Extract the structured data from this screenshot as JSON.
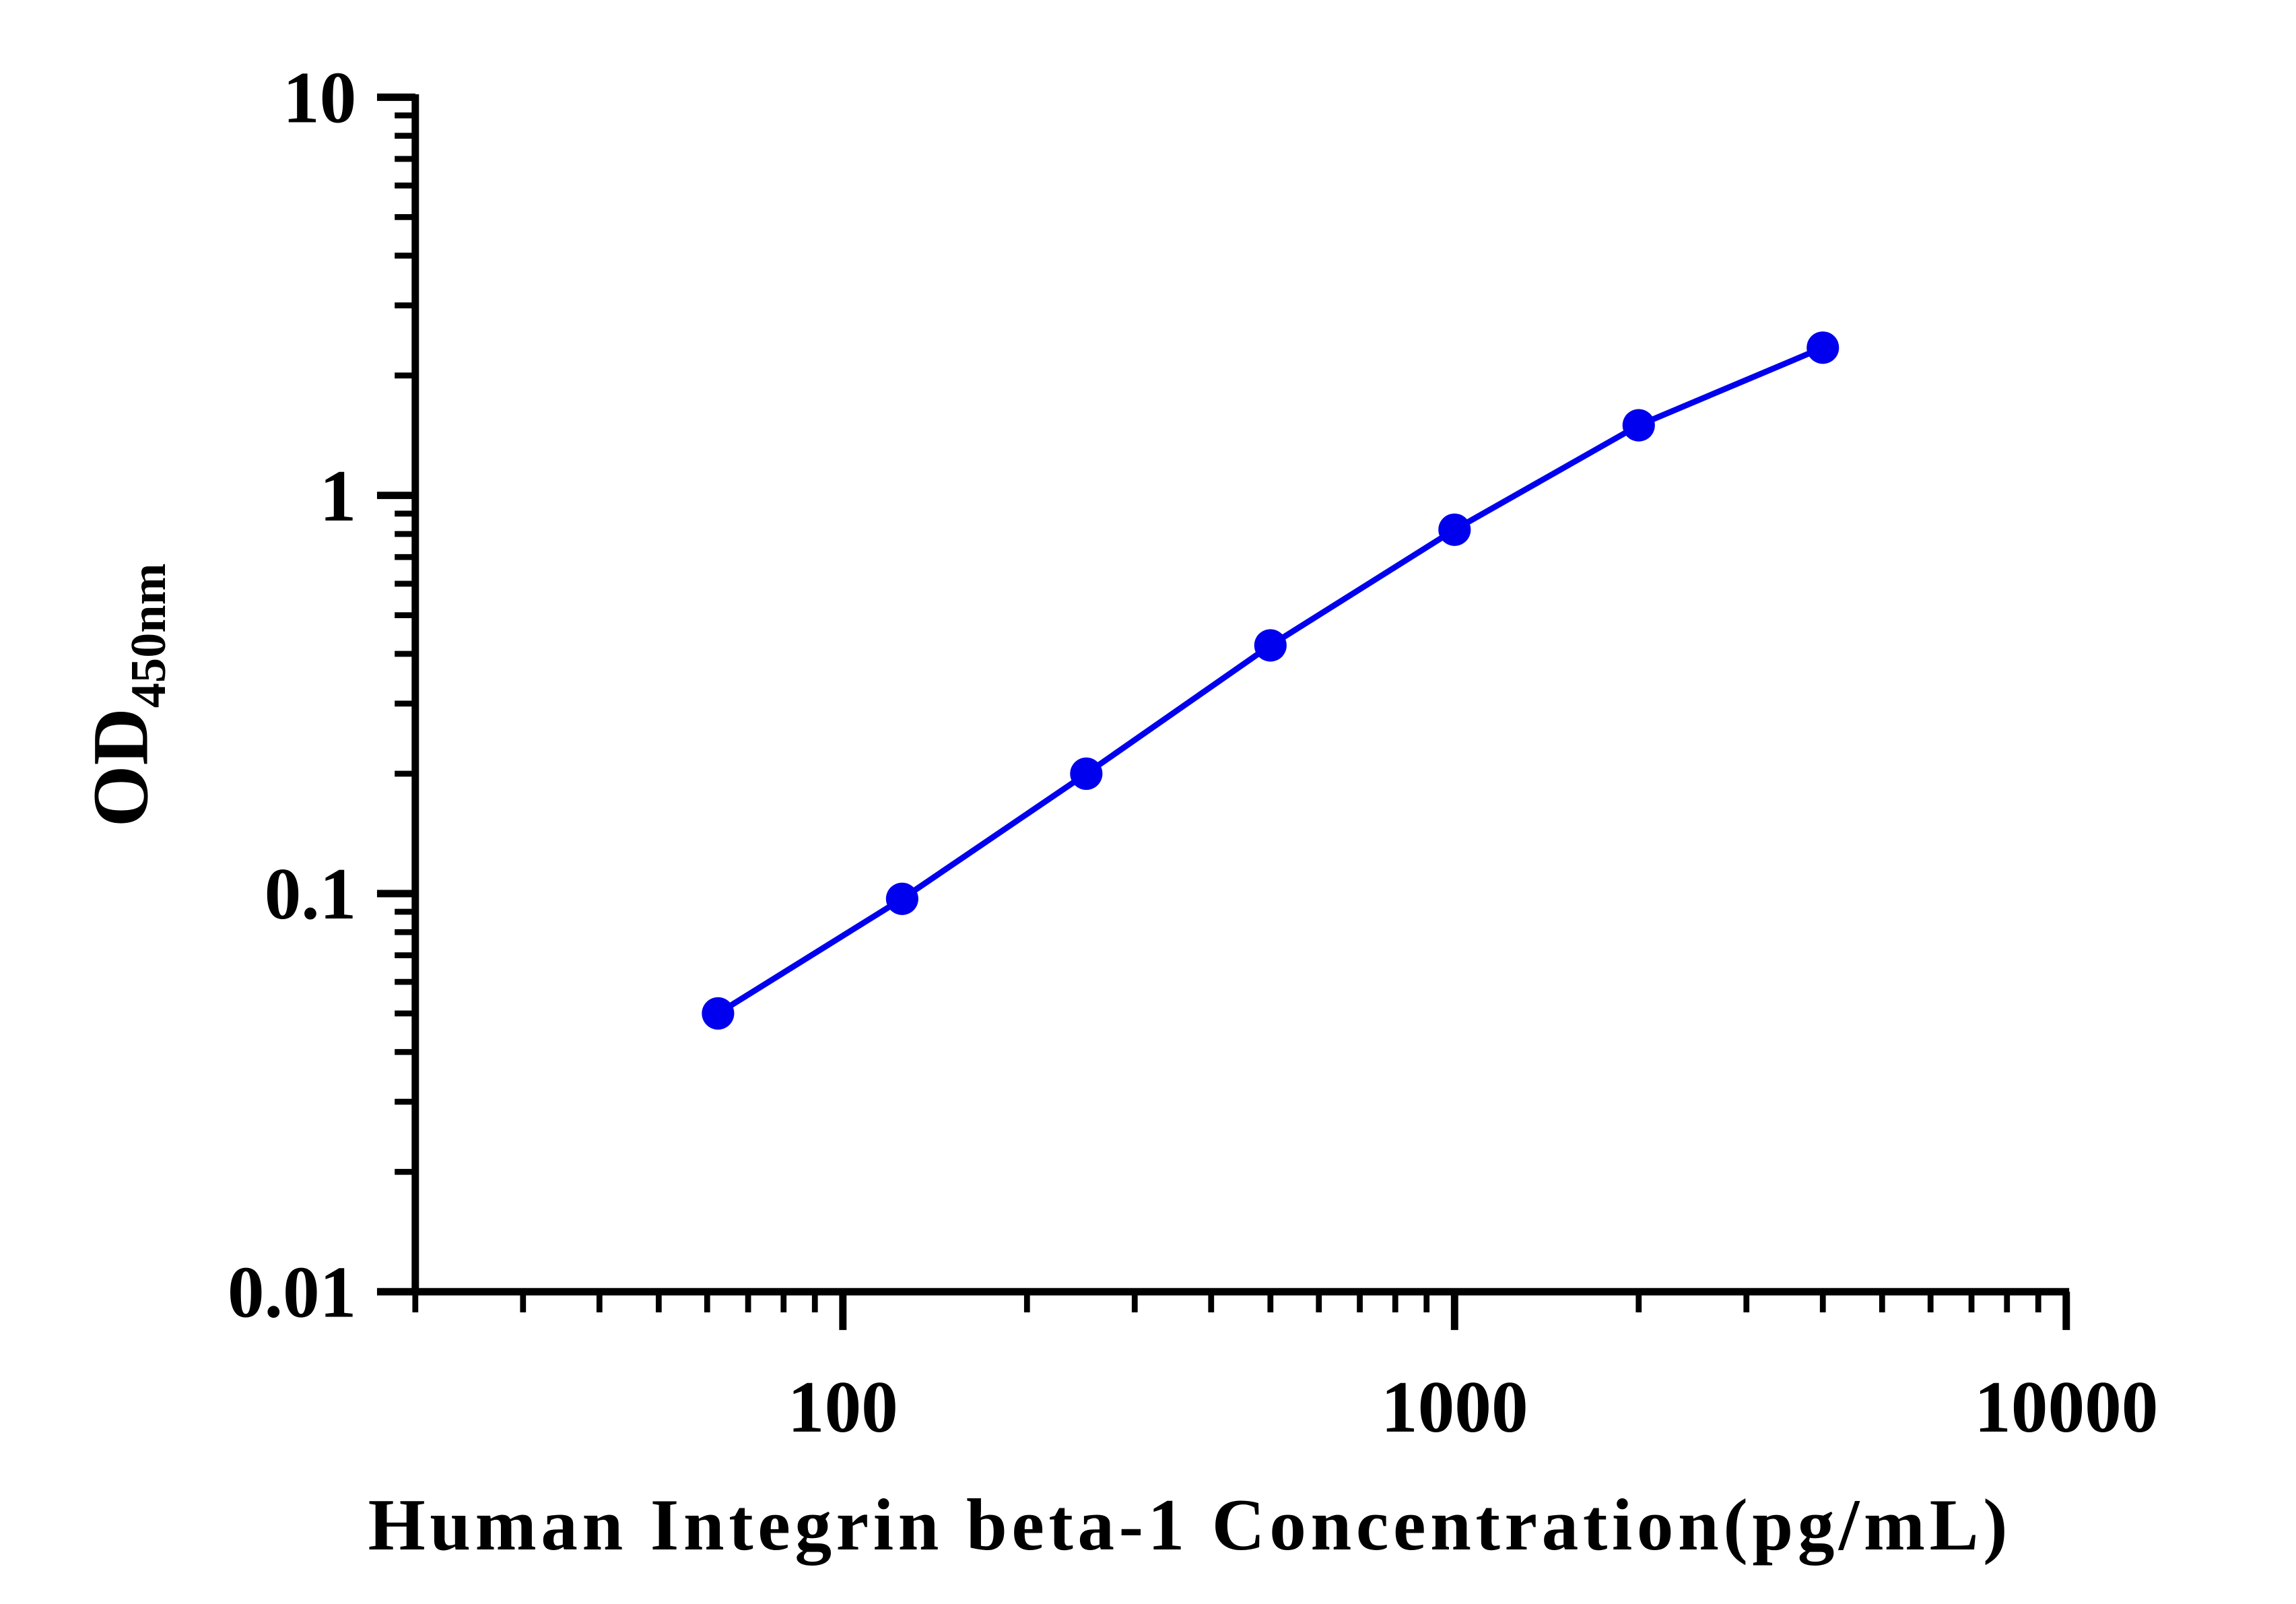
{
  "chart_data": {
    "type": "line",
    "x_label": "Human Integrin beta-1 Concentration(pg/mL)",
    "y_label": {
      "text": "OD",
      "subscript": "450nm"
    },
    "x": [
      62.5,
      125,
      250,
      500,
      1000,
      2000,
      4000
    ],
    "series": [
      {
        "color": "#0000ee",
        "values": [
          0.05,
          0.097,
          0.2,
          0.42,
          0.82,
          1.5,
          2.35
        ]
      }
    ],
    "xscale": "log",
    "yscale": "log",
    "xlim": [
      20,
      10000
    ],
    "xticks": [
      100,
      1000,
      10000
    ],
    "ylim": [
      0.01,
      10
    ],
    "yticks": [
      0.01,
      0.1,
      1,
      10
    ],
    "grid": false
  }
}
